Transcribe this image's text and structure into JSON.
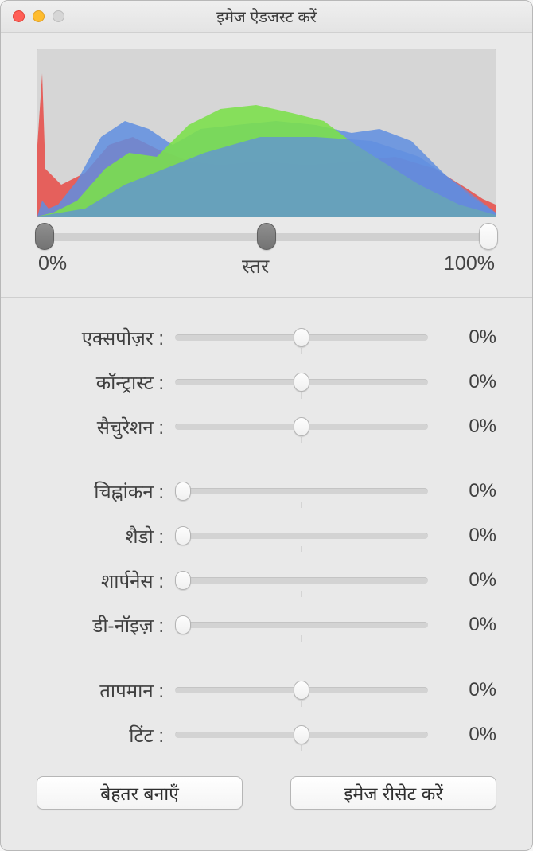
{
  "window": {
    "title": "इमेज ऐडजस्ट करें"
  },
  "traffic_colors": {
    "close": "#ff5f57",
    "min": "#febc2e",
    "max_disabled": "#d6d6d6"
  },
  "histogram": {
    "bg": "#d6d6d6",
    "colors": {
      "red": "#e84b46",
      "green": "#7be04a",
      "blue": "#5f8ee0"
    },
    "levels": {
      "left_pct": 0,
      "mid_pct": 50,
      "right_pct": 100,
      "left_label": "0%",
      "mid_label": "स्तर",
      "right_label": "100%"
    }
  },
  "group1": [
    {
      "label": "एक्सपोज़र :",
      "value": "0%",
      "thumb_pct": 50,
      "tick_pct": 50,
      "min": -100,
      "max": 100
    },
    {
      "label": "कॉन्ट्रास्ट :",
      "value": "0%",
      "thumb_pct": 50,
      "tick_pct": 50,
      "min": -100,
      "max": 100
    },
    {
      "label": "सैचुरेशन :",
      "value": "0%",
      "thumb_pct": 50,
      "tick_pct": 50,
      "min": -100,
      "max": 100
    }
  ],
  "group2": [
    {
      "label": "चिह्नांकन :",
      "value": "0%",
      "thumb_pct": 3,
      "tick_pct": 50,
      "min": 0,
      "max": 100
    },
    {
      "label": "शैडो :",
      "value": "0%",
      "thumb_pct": 3,
      "tick_pct": 50,
      "min": 0,
      "max": 100
    },
    {
      "label": "शार्पनेस :",
      "value": "0%",
      "thumb_pct": 3,
      "tick_pct": 50,
      "min": 0,
      "max": 100
    },
    {
      "label": "डी-नॉइज़ :",
      "value": "0%",
      "thumb_pct": 3,
      "tick_pct": 50,
      "min": 0,
      "max": 100
    }
  ],
  "group3": [
    {
      "label": "तापमान :",
      "value": "0%",
      "thumb_pct": 50,
      "tick_pct": 50,
      "min": -100,
      "max": 100
    },
    {
      "label": "टिंट :",
      "value": "0%",
      "thumb_pct": 50,
      "tick_pct": 50,
      "min": -100,
      "max": 100
    }
  ],
  "buttons": {
    "enhance": "बेहतर बनाएँ",
    "reset": "इमेज रीसेट करें"
  },
  "style": {
    "label_fontsize": 24,
    "value_fontsize": 24,
    "title_fontsize": 20,
    "bg": "#e9e9e9",
    "track": "#d3d3d3",
    "thumb_bg": "#f6f6f6",
    "thumb_border": "#b4b4b4"
  }
}
